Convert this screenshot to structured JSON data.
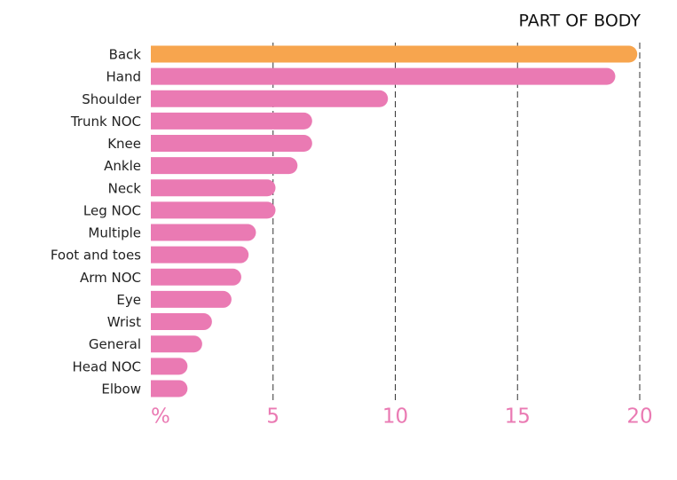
{
  "chart_data": {
    "type": "bar",
    "orientation": "horizontal",
    "title": "PART OF BODY",
    "categories": [
      "Back",
      "Hand",
      "Shoulder",
      "Trunk NOC",
      "Knee",
      "Ankle",
      "Neck",
      "Leg NOC",
      "Multiple",
      "Foot and toes",
      "Arm NOC",
      "Eye",
      "Wrist",
      "General",
      "Head NOC",
      "Elbow"
    ],
    "values": [
      19.9,
      19.0,
      9.7,
      6.6,
      6.6,
      6.0,
      5.1,
      5.1,
      4.3,
      4.0,
      3.7,
      3.3,
      2.5,
      2.1,
      1.5,
      1.5
    ],
    "colors": [
      "#f7a54e",
      "#ea7ab3",
      "#ea7ab3",
      "#ea7ab3",
      "#ea7ab3",
      "#ea7ab3",
      "#ea7ab3",
      "#ea7ab3",
      "#ea7ab3",
      "#ea7ab3",
      "#ea7ab3",
      "#ea7ab3",
      "#ea7ab3",
      "#ea7ab3",
      "#ea7ab3",
      "#ea7ab3"
    ],
    "xlim": [
      0,
      20
    ],
    "xticks": [
      {
        "value": 0,
        "label": "%"
      },
      5,
      10,
      15,
      20
    ],
    "grid": true
  }
}
